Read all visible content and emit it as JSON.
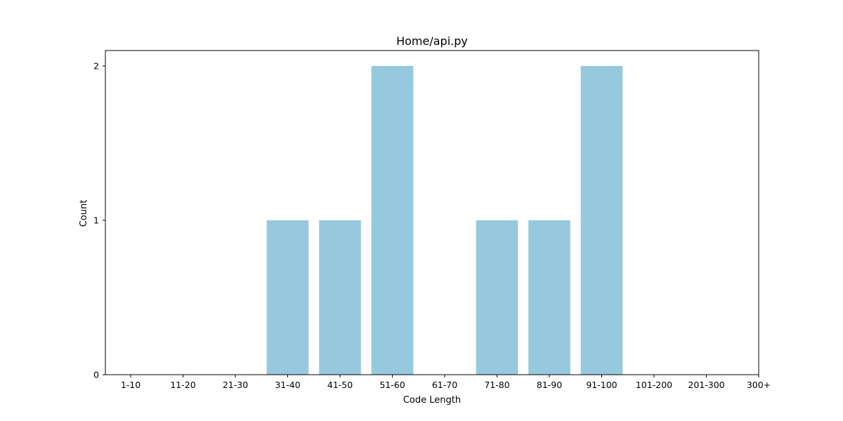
{
  "chart_data": {
    "type": "bar",
    "title": "Home/api.py",
    "xlabel": "Code Length",
    "ylabel": "Count",
    "categories": [
      "1-10",
      "11-20",
      "21-30",
      "31-40",
      "41-50",
      "51-60",
      "61-70",
      "71-80",
      "81-90",
      "91-100",
      "101-200",
      "201-300",
      "300+"
    ],
    "values": [
      0,
      0,
      0,
      1,
      1,
      2,
      0,
      1,
      1,
      2,
      0,
      0,
      0
    ],
    "ylim": [
      0,
      2.1
    ],
    "yticks": [
      0,
      1,
      2
    ],
    "grid": false,
    "legend": "none",
    "bar_color": "#96c9dd"
  }
}
